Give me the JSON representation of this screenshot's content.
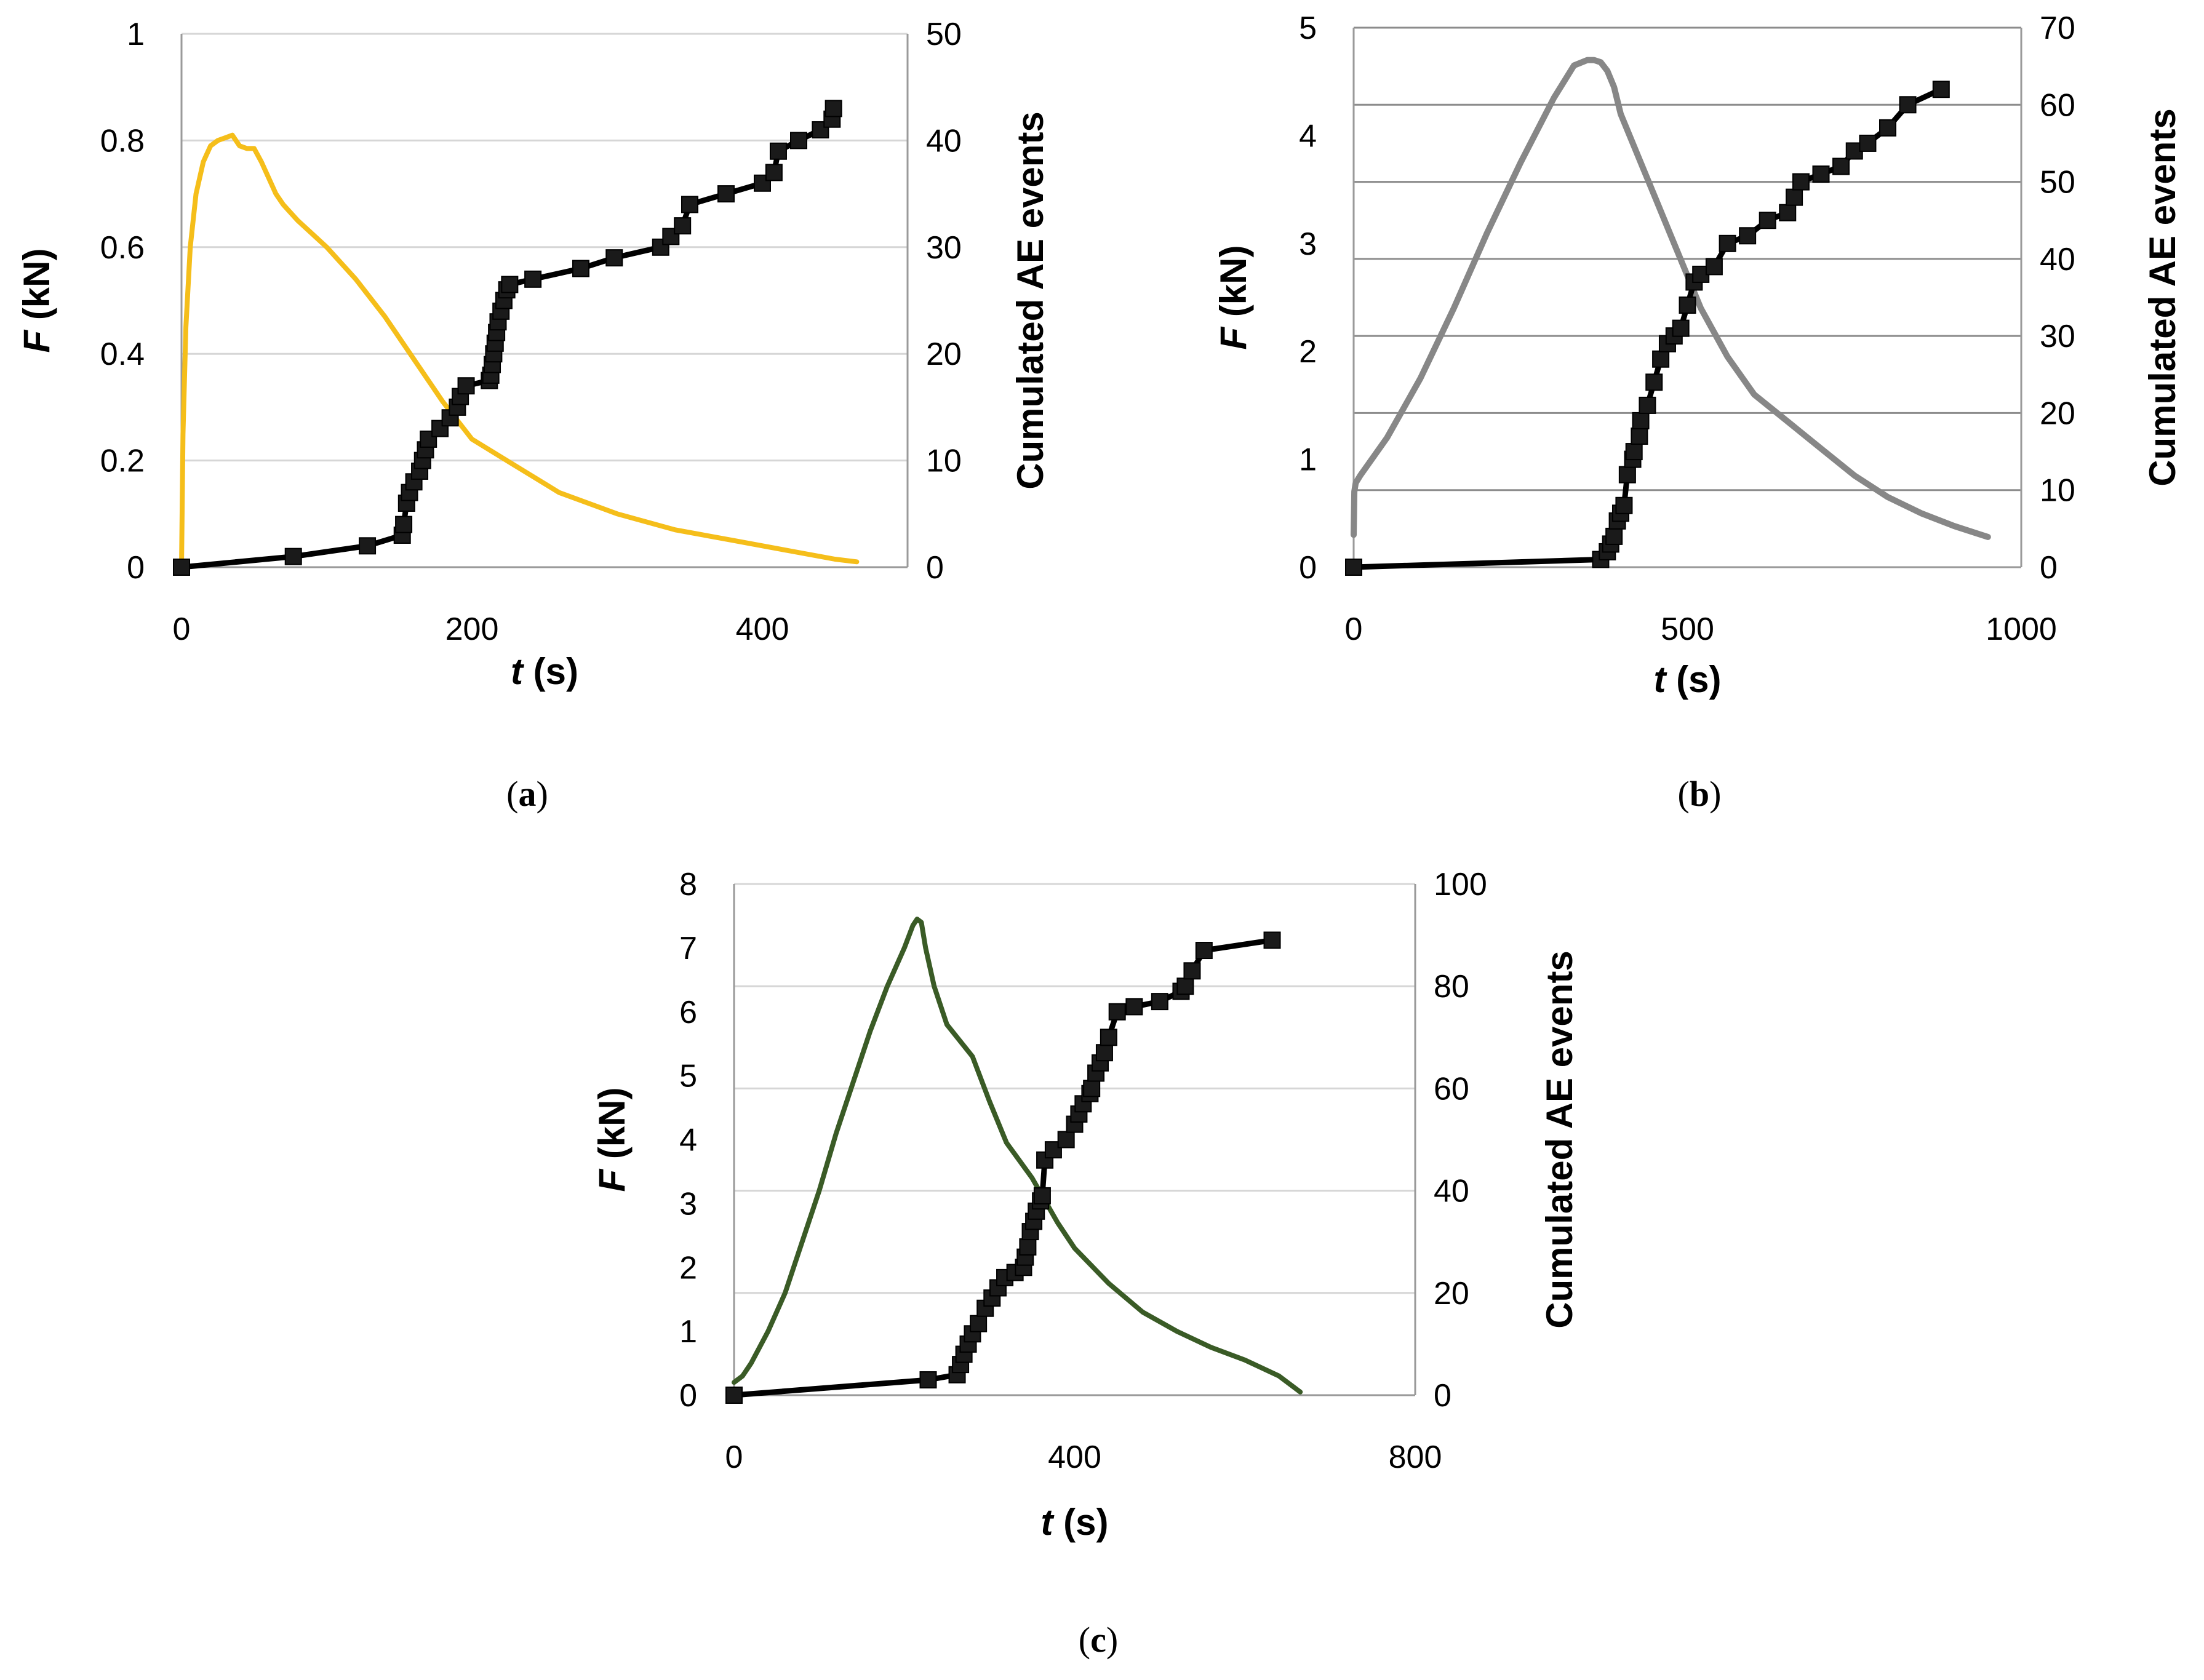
{
  "colors": {
    "panel_a_force": "#F5BE1A",
    "panel_b_force": "#878787",
    "panel_c_force": "#3A5B26",
    "ae_series": "#000000",
    "marker": "#1a1a1a",
    "grid": "#d6d6d6",
    "grid_b": "#8c8c8c",
    "axis": "#9a9a9a"
  },
  "chart_data": [
    {
      "id": "a",
      "caption_label": "a",
      "type": "line",
      "grid": "horizontal",
      "xlabel_italic": "t",
      "xlabel_unit": " (s)",
      "ylabel_italic": "F",
      "ylabel_unit": " (kN)",
      "y2label": "Cumulated AE events",
      "xlim": [
        0,
        500
      ],
      "ylim": [
        0,
        1
      ],
      "y2lim": [
        0,
        50
      ],
      "xticks": [
        0,
        200,
        400
      ],
      "yticks": [
        0,
        0.2,
        0.4,
        0.6,
        0.8,
        1
      ],
      "y2ticks": [
        0,
        10,
        20,
        30,
        40,
        50
      ],
      "series": [
        {
          "name": "F (kN)",
          "axis": "left",
          "marker": false,
          "x": [
            0,
            1,
            3,
            6,
            10,
            15,
            20,
            25,
            30,
            35,
            40,
            45,
            50,
            55,
            60,
            65,
            70,
            80,
            100,
            120,
            140,
            160,
            180,
            200,
            230,
            260,
            300,
            340,
            380,
            420,
            450,
            465
          ],
          "y": [
            0,
            0.25,
            0.45,
            0.6,
            0.7,
            0.76,
            0.79,
            0.8,
            0.805,
            0.81,
            0.79,
            0.785,
            0.785,
            0.76,
            0.73,
            0.7,
            0.68,
            0.65,
            0.6,
            0.54,
            0.47,
            0.39,
            0.31,
            0.24,
            0.19,
            0.14,
            0.1,
            0.07,
            0.05,
            0.03,
            0.015,
            0.01
          ]
        },
        {
          "name": "Cumulated AE events",
          "axis": "right",
          "marker": true,
          "x": [
            0,
            77,
            128,
            152,
            153,
            155,
            157,
            160,
            164,
            166,
            168,
            170,
            178,
            185,
            190,
            192,
            196,
            212,
            213,
            214,
            215,
            216,
            217,
            218,
            220,
            222,
            224,
            226,
            242,
            275,
            298,
            330,
            337,
            345,
            350,
            375,
            400,
            408,
            411,
            425,
            440,
            448,
            449
          ],
          "y": [
            0,
            1,
            2,
            3,
            4,
            6,
            7,
            8,
            9,
            10,
            11,
            12,
            13,
            14,
            15,
            16,
            17,
            17.5,
            18,
            19,
            20,
            21,
            22,
            23,
            24,
            25,
            26,
            26.5,
            27,
            28,
            29,
            30,
            31,
            32,
            34,
            35,
            36,
            37,
            39,
            40,
            41,
            42,
            43
          ]
        }
      ]
    },
    {
      "id": "b",
      "caption_label": "b",
      "type": "line",
      "grid": "horizontal",
      "xlabel_italic": "t",
      "xlabel_unit": " (s)",
      "ylabel_italic": "F",
      "ylabel_unit": " (kN)",
      "y2label": "Cumulated AE events",
      "xlim": [
        0,
        1000
      ],
      "ylim": [
        0,
        5
      ],
      "y2lim": [
        0,
        70
      ],
      "xticks": [
        0,
        500,
        1000
      ],
      "yticks": [
        0,
        1,
        2,
        3,
        4,
        5
      ],
      "y2ticks": [
        0,
        10,
        20,
        30,
        40,
        50,
        60,
        70
      ],
      "series": [
        {
          "name": "F (kN)",
          "axis": "left",
          "marker": false,
          "x": [
            0,
            1,
            3,
            10,
            50,
            100,
            150,
            200,
            250,
            300,
            330,
            350,
            360,
            370,
            380,
            390,
            400,
            420,
            450,
            480,
            520,
            560,
            600,
            650,
            700,
            750,
            800,
            850,
            900,
            940,
            950
          ],
          "y": [
            0.3,
            0.7,
            0.78,
            0.85,
            1.2,
            1.75,
            2.4,
            3.1,
            3.75,
            4.35,
            4.65,
            4.7,
            4.7,
            4.68,
            4.6,
            4.45,
            4.2,
            3.9,
            3.45,
            3.0,
            2.4,
            1.95,
            1.6,
            1.35,
            1.1,
            0.85,
            0.65,
            0.5,
            0.38,
            0.3,
            0.28
          ]
        },
        {
          "name": "Cumulated AE events",
          "axis": "right",
          "marker": true,
          "x": [
            0,
            370,
            380,
            385,
            390,
            395,
            400,
            405,
            410,
            418,
            420,
            428,
            430,
            440,
            450,
            460,
            470,
            480,
            490,
            500,
            510,
            520,
            540,
            560,
            590,
            620,
            650,
            660,
            670,
            700,
            730,
            750,
            770,
            800,
            830,
            880
          ],
          "y": [
            0,
            1,
            2,
            3,
            4,
            6,
            7,
            8,
            12,
            14,
            15,
            17,
            19,
            21,
            24,
            27,
            29,
            30,
            31,
            34,
            37,
            38,
            39,
            42,
            43,
            45,
            46,
            48,
            50,
            51,
            52,
            54,
            55,
            57,
            60,
            62
          ]
        }
      ]
    },
    {
      "id": "c",
      "caption_label": "c",
      "type": "line",
      "grid": "horizontal",
      "xlabel_italic": "t",
      "xlabel_unit": " (s)",
      "ylabel_italic": "F",
      "ylabel_unit": " (kN)",
      "y2label": "Cumulated AE events",
      "xlim": [
        0,
        800
      ],
      "ylim": [
        0,
        8
      ],
      "y2lim": [
        0,
        100
      ],
      "xticks": [
        0,
        400,
        800
      ],
      "yticks": [
        0,
        1,
        2,
        3,
        4,
        5,
        6,
        7,
        8
      ],
      "y2ticks": [
        0,
        20,
        40,
        60,
        80,
        100
      ],
      "series": [
        {
          "name": "F (kN)",
          "axis": "left",
          "marker": false,
          "x": [
            0,
            5,
            10,
            20,
            40,
            60,
            80,
            100,
            120,
            140,
            160,
            180,
            200,
            210,
            215,
            220,
            225,
            235,
            250,
            280,
            300,
            320,
            350,
            380,
            400,
            440,
            480,
            520,
            560,
            600,
            640,
            665
          ],
          "y": [
            0.2,
            0.25,
            0.3,
            0.5,
            1.0,
            1.6,
            2.4,
            3.2,
            4.1,
            4.9,
            5.7,
            6.4,
            7.0,
            7.35,
            7.45,
            7.4,
            7.0,
            6.4,
            5.8,
            5.3,
            4.6,
            3.95,
            3.4,
            2.7,
            2.3,
            1.75,
            1.3,
            1.0,
            0.75,
            0.55,
            0.3,
            0.05
          ]
        },
        {
          "name": "Cumulated AE events",
          "axis": "right",
          "marker": true,
          "x": [
            0,
            228,
            262,
            266,
            270,
            275,
            280,
            287,
            295,
            303,
            310,
            318,
            330,
            340,
            342,
            345,
            348,
            352,
            355,
            360,
            362,
            365,
            375,
            390,
            400,
            405,
            410,
            418,
            420,
            425,
            430,
            435,
            440,
            450,
            470,
            500,
            525,
            530,
            538,
            552,
            632
          ],
          "y": [
            0,
            3,
            4,
            6,
            8,
            10,
            12,
            14,
            17,
            19,
            21,
            23,
            24,
            25,
            27,
            29,
            32,
            34,
            36,
            38,
            39,
            46,
            48,
            50,
            53,
            55,
            57,
            59,
            60,
            63,
            65,
            67,
            70,
            75,
            76,
            77,
            79,
            80,
            83,
            87,
            89
          ]
        }
      ]
    }
  ]
}
